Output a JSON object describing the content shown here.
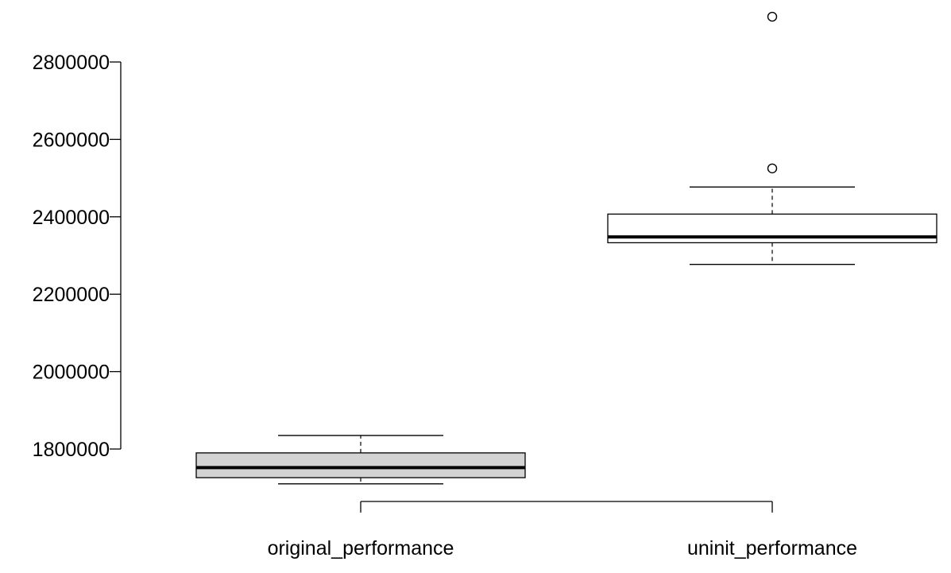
{
  "chart_data": {
    "type": "boxplot",
    "title": "",
    "xlabel": "",
    "ylabel": "",
    "ylim": [
      1660000,
      2930000
    ],
    "yticks": [
      1800000,
      2000000,
      2200000,
      2400000,
      2600000,
      2800000
    ],
    "ytick_labels": [
      "1800000",
      "2000000",
      "2200000",
      "2400000",
      "2600000",
      "2800000"
    ],
    "categories": [
      "original_performance",
      "uninit_performance"
    ],
    "grid": false,
    "legend": "none",
    "boxes": [
      {
        "category": "original_performance",
        "whisker_low": 1710000,
        "q1": 1726000,
        "median": 1752000,
        "q3": 1790000,
        "whisker_high": 1835000,
        "outliers": [],
        "fill": "#d3d3d3"
      },
      {
        "category": "uninit_performance",
        "whisker_low": 2277000,
        "q1": 2333000,
        "median": 2348000,
        "q3": 2407000,
        "whisker_high": 2477000,
        "outliers": [
          2525000,
          2917000
        ],
        "fill": "#ffffff"
      }
    ]
  }
}
